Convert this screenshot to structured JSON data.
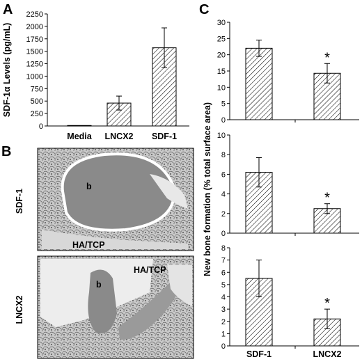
{
  "panel_labels": {
    "a": "A",
    "b": "B",
    "c": "C"
  },
  "panel_b": {
    "row_labels": [
      "SDF-1",
      "LNCX2"
    ],
    "image_labels": {
      "top": [
        "b",
        "HA/TCP"
      ],
      "bottom": [
        "HA/TCP",
        "b"
      ]
    }
  },
  "chart_data": [
    {
      "id": "A",
      "type": "bar",
      "ylabel": "SDF-1α Levels (pg/mL)",
      "ylim": [
        0,
        2250
      ],
      "yticks": [
        0,
        250,
        500,
        750,
        1000,
        1250,
        1500,
        1750,
        2000,
        2250
      ],
      "categories": [
        "Media",
        "LNCX2",
        "SDF-1"
      ],
      "values": [
        10,
        460,
        1570
      ],
      "errors": [
        0,
        140,
        400
      ],
      "annotations": [
        "",
        "",
        ""
      ],
      "show_category_labels": true
    },
    {
      "id": "C1",
      "type": "bar",
      "ylabel": "",
      "ylim": [
        0,
        30
      ],
      "yticks": [
        0,
        5,
        10,
        15,
        20,
        25,
        30
      ],
      "categories": [
        "SDF-1",
        "LNCX2"
      ],
      "values": [
        22,
        14.3
      ],
      "errors": [
        2.5,
        3.0
      ],
      "annotations": [
        "",
        "*"
      ],
      "show_category_labels": false
    },
    {
      "id": "C2",
      "type": "bar",
      "ylabel": "",
      "ylim": [
        0,
        10
      ],
      "yticks": [
        0,
        2,
        4,
        6,
        8,
        10
      ],
      "categories": [
        "SDF-1",
        "LNCX2"
      ],
      "values": [
        6.2,
        2.5
      ],
      "errors": [
        1.5,
        0.5
      ],
      "annotations": [
        "",
        "*"
      ],
      "show_category_labels": false
    },
    {
      "id": "C3",
      "type": "bar",
      "ylabel": "",
      "ylim": [
        0,
        8
      ],
      "yticks": [
        0,
        1,
        2,
        3,
        4,
        5,
        6,
        7,
        8
      ],
      "categories": [
        "SDF-1",
        "LNCX2"
      ],
      "values": [
        5.5,
        2.2
      ],
      "errors": [
        1.5,
        0.8
      ],
      "annotations": [
        "",
        "*"
      ],
      "show_category_labels": true
    }
  ],
  "panel_c_ylabel": "New bone formation (% total surface area)"
}
